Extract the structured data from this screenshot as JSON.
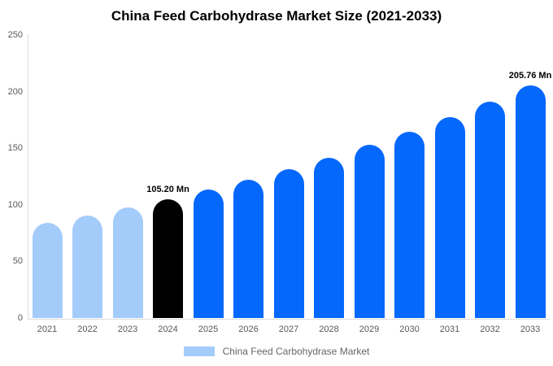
{
  "title": "China Feed Carbohydrase Market Size (2021-2033)",
  "colors": {
    "light_blue": "#A4CCFA",
    "blue": "#0568FD",
    "highlight_black": "#000000",
    "axis_line": "#DDDDDD",
    "axis_text": "#595959",
    "legend_text": "#666666",
    "annotation_text": "#000000",
    "background": "#FFFFFF"
  },
  "chart_data": {
    "type": "bar",
    "title": "China Feed Carbohydrase Market Size (2021-2033)",
    "categories": [
      "2021",
      "2022",
      "2023",
      "2024",
      "2025",
      "2026",
      "2027",
      "2028",
      "2029",
      "2030",
      "2031",
      "2032",
      "2033"
    ],
    "values": [
      84.1,
      90.6,
      97.6,
      105.2,
      113.3,
      122.1,
      131.6,
      141.7,
      152.7,
      164.6,
      177.3,
      191.0,
      205.76
    ],
    "unit": "Mn",
    "bar_colors": [
      "#A4CCFA",
      "#A4CCFA",
      "#A4CCFA",
      "#000000",
      "#0568FD",
      "#0568FD",
      "#0568FD",
      "#0568FD",
      "#0568FD",
      "#0568FD",
      "#0568FD",
      "#0568FD",
      "#0568FD"
    ],
    "y_ticks": [
      0,
      50,
      100,
      150,
      200,
      250
    ],
    "ylim": [
      0,
      250
    ],
    "xlabel": "",
    "ylabel": "",
    "grid": false,
    "annotations": [
      {
        "category": "2024",
        "text": "105.20 Mn"
      },
      {
        "category": "2033",
        "text": "205.76 Mn"
      }
    ],
    "legend": {
      "label": "China Feed Carbohydrase Market",
      "swatch_color": "#A4CCFA",
      "position": "bottom"
    }
  }
}
